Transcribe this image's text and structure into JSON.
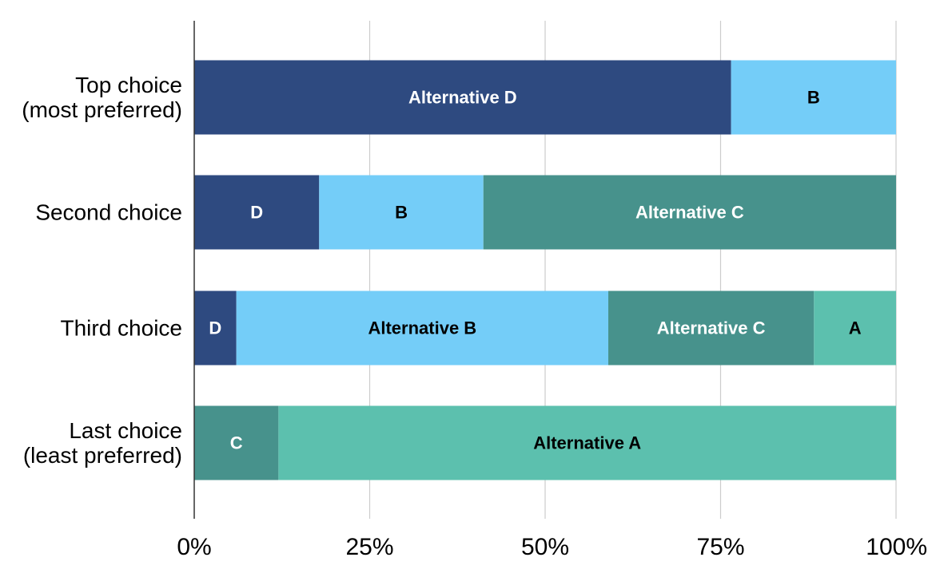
{
  "chart_data": {
    "type": "bar",
    "orientation": "horizontal",
    "stacked": true,
    "normalized": true,
    "title": "",
    "xlabel": "",
    "ylabel": "",
    "xlim": [
      0,
      100
    ],
    "x_ticks": [
      "0%",
      "25%",
      "50%",
      "75%",
      "100%"
    ],
    "x_tick_values": [
      0,
      25,
      50,
      75,
      100
    ],
    "grid": "vertical",
    "legend": "none",
    "categories": [
      [
        "Top choice",
        "(most preferred)"
      ],
      [
        "Second choice"
      ],
      [
        "Third choice"
      ],
      [
        "Last choice",
        "(least preferred)"
      ]
    ],
    "series_colors": {
      "Alternative D": "#2e4a80",
      "Alternative B": "#74cdf8",
      "Alternative C": "#47928c",
      "Alternative A": "#5cc0ae"
    },
    "rows": [
      {
        "segments": [
          {
            "series": "Alternative D",
            "value": 76.5,
            "label": "Alternative D",
            "label_color": "#ffffff"
          },
          {
            "series": "Alternative B",
            "value": 23.5,
            "label": "B",
            "label_color": "#000000"
          }
        ]
      },
      {
        "segments": [
          {
            "series": "Alternative D",
            "value": 17.8,
            "label": "D",
            "label_color": "#ffffff"
          },
          {
            "series": "Alternative B",
            "value": 23.4,
            "label": "B",
            "label_color": "#000000"
          },
          {
            "series": "Alternative C",
            "value": 58.8,
            "label": "Alternative C",
            "label_color": "#ffffff"
          }
        ]
      },
      {
        "segments": [
          {
            "series": "Alternative D",
            "value": 6.0,
            "label": "D",
            "label_color": "#ffffff"
          },
          {
            "series": "Alternative B",
            "value": 53.0,
            "label": "Alternative B",
            "label_color": "#000000"
          },
          {
            "series": "Alternative C",
            "value": 29.3,
            "label": "Alternative C",
            "label_color": "#ffffff"
          },
          {
            "series": "Alternative A",
            "value": 11.7,
            "label": "A",
            "label_color": "#000000"
          }
        ]
      },
      {
        "segments": [
          {
            "series": "Alternative C",
            "value": 12.0,
            "label": "C",
            "label_color": "#ffffff"
          },
          {
            "series": "Alternative A",
            "value": 88.0,
            "label": "Alternative A",
            "label_color": "#000000"
          }
        ]
      }
    ]
  }
}
